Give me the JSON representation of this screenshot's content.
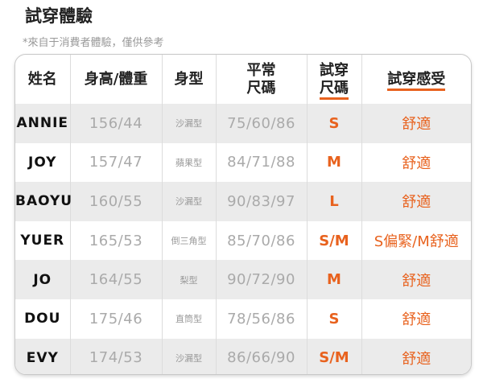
{
  "title": "試穿體驗",
  "note": "*來自于消費者體驗，僅供參考",
  "accent_color": "#e8621e",
  "headers": {
    "name": "姓名",
    "height_weight": "身高/體重",
    "body_type": "身型",
    "usual_size_1": "平常",
    "usual_size_2": "尺碼",
    "trial_size_1": "試穿",
    "trial_size_2": "尺碼",
    "feeling": "試穿感受"
  },
  "rows": [
    {
      "name": "ANNIE",
      "hw": "156/44",
      "shape": "沙漏型",
      "meas": "75/60/86",
      "size": "S",
      "feel": "舒適"
    },
    {
      "name": "JOY",
      "hw": "157/47",
      "shape": "蘋果型",
      "meas": "84/71/88",
      "size": "M",
      "feel": "舒適"
    },
    {
      "name": "BAOYU",
      "hw": "160/55",
      "shape": "沙漏型",
      "meas": "90/83/97",
      "size": "L",
      "feel": "舒適"
    },
    {
      "name": "YUER",
      "hw": "165/53",
      "shape": "倒三角型",
      "meas": "85/70/86",
      "size": "S/M",
      "feel": "S偏緊/M舒適"
    },
    {
      "name": "JO",
      "hw": "164/55",
      "shape": "梨型",
      "meas": "90/72/90",
      "size": "M",
      "feel": "舒適"
    },
    {
      "name": "DOU",
      "hw": "175/46",
      "shape": "直筒型",
      "meas": "78/56/86",
      "size": "S",
      "feel": "舒適"
    },
    {
      "name": "EVY",
      "hw": "174/53",
      "shape": "沙漏型",
      "meas": "86/66/90",
      "size": "S/M",
      "feel": "舒適"
    }
  ]
}
